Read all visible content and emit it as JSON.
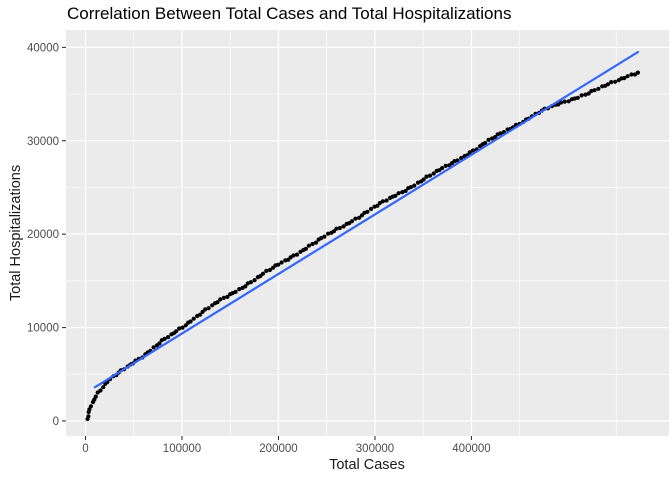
{
  "title": "Correlation Between Total Cases and Total Hospitalizations",
  "axes": {
    "x": {
      "label": "Total Cases",
      "tick_labels": [
        "0",
        "100000",
        "200000",
        "300000",
        "400000"
      ]
    },
    "y": {
      "label": "Total Hospitalizations",
      "tick_labels": [
        "0",
        "10000",
        "20000",
        "30000",
        "40000"
      ]
    }
  },
  "chart_data": {
    "type": "scatter",
    "title": "Correlation Between Total Cases and Total Hospitalizations",
    "xlabel": "Total Cases",
    "ylabel": "Total Hospitalizations",
    "x_ticks": [
      0,
      100000,
      200000,
      300000,
      400000
    ],
    "y_ticks": [
      0,
      10000,
      20000,
      30000,
      40000
    ],
    "xlim": [
      -20200,
      604700
    ],
    "ylim": [
      -1610,
      41860
    ],
    "grid": "white major and minor gridlines on grey panel",
    "legend": "none",
    "series": [
      {
        "name": "observations",
        "type": "scatter",
        "color": "#000000",
        "marker_radius_px": 2.1,
        "approx_point_count": 185,
        "anchors": [
          [
            1600,
            210
          ],
          [
            3600,
            960
          ],
          [
            5700,
            1710
          ],
          [
            8800,
            2360
          ],
          [
            13000,
            3000
          ],
          [
            18100,
            3640
          ],
          [
            24400,
            4280
          ],
          [
            31600,
            4920
          ],
          [
            39900,
            5570
          ],
          [
            48200,
            6210
          ],
          [
            57500,
            6850
          ],
          [
            66800,
            7490
          ],
          [
            77200,
            8350
          ],
          [
            87600,
            9100
          ],
          [
            100000,
            10060
          ],
          [
            118700,
            11490
          ],
          [
            139400,
            12860
          ],
          [
            160100,
            14190
          ],
          [
            180800,
            15500
          ],
          [
            201500,
            16820
          ],
          [
            222300,
            18150
          ],
          [
            243000,
            19410
          ],
          [
            263700,
            20690
          ],
          [
            284400,
            21950
          ],
          [
            305100,
            23210
          ],
          [
            325900,
            24430
          ],
          [
            346600,
            25640
          ],
          [
            367300,
            26850
          ],
          [
            388000,
            28130
          ],
          [
            408800,
            29390
          ],
          [
            429500,
            30710
          ],
          [
            450200,
            31930
          ],
          [
            470900,
            33080
          ],
          [
            489600,
            33900
          ],
          [
            507200,
            34590
          ],
          [
            524800,
            35290
          ],
          [
            541400,
            35980
          ],
          [
            555900,
            36630
          ],
          [
            564200,
            37050
          ],
          [
            572500,
            37360
          ]
        ]
      },
      {
        "name": "linear-fit",
        "type": "line",
        "color": "#3366FF",
        "x": [
          9800,
          572500
        ],
        "y": [
          3610,
          39500
        ]
      }
    ]
  },
  "colors": {
    "outer_bg": "#FFFFFF",
    "panel_bg": "#EBEBEB",
    "grid": "#FFFFFF",
    "tick_text": "#4D4D4D",
    "tick_mark": "#333333",
    "axis_title": "#1A1A1A",
    "title_text": "#000000",
    "point": "#000000",
    "trend": "#3366FF"
  }
}
